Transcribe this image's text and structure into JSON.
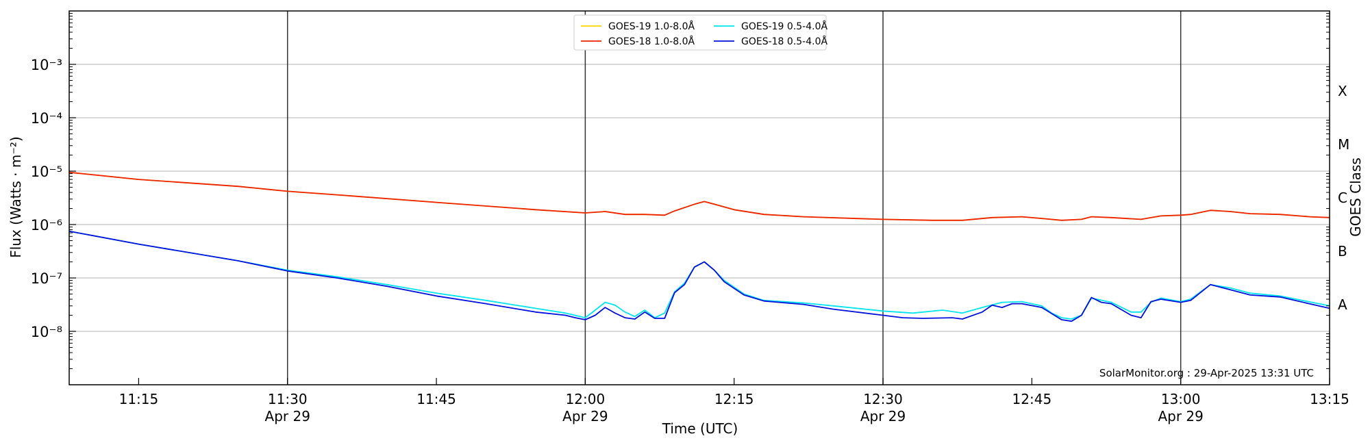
{
  "chart_data": {
    "type": "line",
    "xlabel": "Time (UTC)",
    "ylabel": "Flux (Watts · m⁻²)",
    "y2label": "GOES Class",
    "yscale": "log",
    "ylim": [
      1e-09,
      0.01
    ],
    "xlim": [
      "11:08",
      "13:15"
    ],
    "grid": "horizontal",
    "legend_position": "top-center",
    "x_ticks": [
      {
        "t": "11:15",
        "label": "11:15",
        "date": ""
      },
      {
        "t": "11:30",
        "label": "11:30",
        "date": "Apr 29"
      },
      {
        "t": "11:45",
        "label": "11:45",
        "date": ""
      },
      {
        "t": "12:00",
        "label": "12:00",
        "date": "Apr 29"
      },
      {
        "t": "12:15",
        "label": "12:15",
        "date": ""
      },
      {
        "t": "12:30",
        "label": "12:30",
        "date": "Apr 29"
      },
      {
        "t": "12:45",
        "label": "12:45",
        "date": ""
      },
      {
        "t": "13:00",
        "label": "13:00",
        "date": "Apr 29"
      },
      {
        "t": "13:15",
        "label": "13:15",
        "date": ""
      }
    ],
    "day_separators": [
      "11:30",
      "12:00",
      "12:30",
      "13:00"
    ],
    "y_ticks": [
      {
        "v": 1e-08,
        "label": "10⁻⁸"
      },
      {
        "v": 1e-07,
        "label": "10⁻⁷"
      },
      {
        "v": 1e-06,
        "label": "10⁻⁶"
      },
      {
        "v": 1e-05,
        "label": "10⁻⁵"
      },
      {
        "v": 0.0001,
        "label": "10⁻⁴"
      },
      {
        "v": 0.001,
        "label": "10⁻³"
      }
    ],
    "classes": [
      {
        "label": "A",
        "v": 1e-08
      },
      {
        "label": "B",
        "v": 1e-07
      },
      {
        "label": "C",
        "v": 1e-06
      },
      {
        "label": "M",
        "v": 1e-05
      },
      {
        "label": "X",
        "v": 0.0001
      }
    ],
    "annotation": "SolarMonitor.org : 29-Apr-2025 13:31 UTC",
    "series": [
      {
        "name": "GOES-19 1.0-8.0Å",
        "color": "#ffd700",
        "points": [
          [
            "11:08",
            9.5e-06
          ],
          [
            "11:15",
            7e-06
          ],
          [
            "11:25",
            5.2e-06
          ],
          [
            "11:30",
            4.2e-06
          ],
          [
            "11:35",
            3.6e-06
          ],
          [
            "11:45",
            2.6e-06
          ],
          [
            "11:55",
            1.9e-06
          ],
          [
            "12:00",
            1.65e-06
          ],
          [
            "12:02",
            1.75e-06
          ],
          [
            "12:04",
            1.55e-06
          ],
          [
            "12:06",
            1.55e-06
          ],
          [
            "12:08",
            1.5e-06
          ],
          [
            "12:09",
            1.8e-06
          ],
          [
            "12:11",
            2.4e-06
          ],
          [
            "12:12",
            2.7e-06
          ],
          [
            "12:13",
            2.4e-06
          ],
          [
            "12:15",
            1.9e-06
          ],
          [
            "12:18",
            1.55e-06
          ],
          [
            "12:22",
            1.4e-06
          ],
          [
            "12:30",
            1.25e-06
          ],
          [
            "12:35",
            1.2e-06
          ],
          [
            "12:38",
            1.2e-06
          ],
          [
            "12:41",
            1.35e-06
          ],
          [
            "12:44",
            1.4e-06
          ],
          [
            "12:46",
            1.3e-06
          ],
          [
            "12:48",
            1.2e-06
          ],
          [
            "12:50",
            1.25e-06
          ],
          [
            "12:51",
            1.4e-06
          ],
          [
            "12:53",
            1.35e-06
          ],
          [
            "12:56",
            1.25e-06
          ],
          [
            "12:58",
            1.45e-06
          ],
          [
            "13:00",
            1.5e-06
          ],
          [
            "13:01",
            1.55e-06
          ],
          [
            "13:03",
            1.85e-06
          ],
          [
            "13:05",
            1.75e-06
          ],
          [
            "13:07",
            1.6e-06
          ],
          [
            "13:10",
            1.55e-06
          ],
          [
            "13:13",
            1.4e-06
          ],
          [
            "13:15",
            1.35e-06
          ]
        ]
      },
      {
        "name": "GOES-18 1.0-8.0Å",
        "color": "#ee2200",
        "points": [
          [
            "11:08",
            9.5e-06
          ],
          [
            "11:15",
            7e-06
          ],
          [
            "11:25",
            5.2e-06
          ],
          [
            "11:30",
            4.2e-06
          ],
          [
            "11:35",
            3.6e-06
          ],
          [
            "11:45",
            2.6e-06
          ],
          [
            "11:55",
            1.9e-06
          ],
          [
            "12:00",
            1.65e-06
          ],
          [
            "12:02",
            1.75e-06
          ],
          [
            "12:04",
            1.55e-06
          ],
          [
            "12:06",
            1.55e-06
          ],
          [
            "12:08",
            1.5e-06
          ],
          [
            "12:09",
            1.8e-06
          ],
          [
            "12:11",
            2.4e-06
          ],
          [
            "12:12",
            2.7e-06
          ],
          [
            "12:13",
            2.4e-06
          ],
          [
            "12:15",
            1.9e-06
          ],
          [
            "12:18",
            1.55e-06
          ],
          [
            "12:22",
            1.4e-06
          ],
          [
            "12:30",
            1.25e-06
          ],
          [
            "12:35",
            1.2e-06
          ],
          [
            "12:38",
            1.2e-06
          ],
          [
            "12:41",
            1.35e-06
          ],
          [
            "12:44",
            1.4e-06
          ],
          [
            "12:46",
            1.3e-06
          ],
          [
            "12:48",
            1.2e-06
          ],
          [
            "12:50",
            1.25e-06
          ],
          [
            "12:51",
            1.4e-06
          ],
          [
            "12:53",
            1.35e-06
          ],
          [
            "12:56",
            1.25e-06
          ],
          [
            "12:58",
            1.45e-06
          ],
          [
            "13:00",
            1.5e-06
          ],
          [
            "13:01",
            1.55e-06
          ],
          [
            "13:03",
            1.85e-06
          ],
          [
            "13:05",
            1.75e-06
          ],
          [
            "13:07",
            1.6e-06
          ],
          [
            "13:10",
            1.55e-06
          ],
          [
            "13:13",
            1.4e-06
          ],
          [
            "13:15",
            1.35e-06
          ]
        ]
      },
      {
        "name": "GOES-19 0.5-4.0Å",
        "color": "#00e5ee",
        "points": [
          [
            "11:08",
            7.5e-07
          ],
          [
            "11:15",
            4.3e-07
          ],
          [
            "11:25",
            2.1e-07
          ],
          [
            "11:30",
            1.4e-07
          ],
          [
            "11:35",
            1.05e-07
          ],
          [
            "11:40",
            7.5e-08
          ],
          [
            "11:45",
            5.2e-08
          ],
          [
            "11:50",
            3.8e-08
          ],
          [
            "11:55",
            2.7e-08
          ],
          [
            "11:58",
            2.2e-08
          ],
          [
            "12:00",
            1.8e-08
          ],
          [
            "12:01",
            2.5e-08
          ],
          [
            "12:02",
            3.5e-08
          ],
          [
            "12:03",
            3.1e-08
          ],
          [
            "12:04",
            2.3e-08
          ],
          [
            "12:05",
            1.9e-08
          ],
          [
            "12:06",
            2.5e-08
          ],
          [
            "12:07",
            1.8e-08
          ],
          [
            "12:08",
            2.2e-08
          ],
          [
            "12:09",
            5.5e-08
          ],
          [
            "12:10",
            8e-08
          ],
          [
            "12:11",
            1.6e-07
          ],
          [
            "12:12",
            2e-07
          ],
          [
            "12:13",
            1.4e-07
          ],
          [
            "12:14",
            9e-08
          ],
          [
            "12:16",
            5e-08
          ],
          [
            "12:18",
            3.8e-08
          ],
          [
            "12:22",
            3.4e-08
          ],
          [
            "12:25",
            3e-08
          ],
          [
            "12:30",
            2.4e-08
          ],
          [
            "12:33",
            2.2e-08
          ],
          [
            "12:36",
            2.5e-08
          ],
          [
            "12:38",
            2.2e-08
          ],
          [
            "12:40",
            2.8e-08
          ],
          [
            "12:42",
            3.5e-08
          ],
          [
            "12:44",
            3.6e-08
          ],
          [
            "12:46",
            3e-08
          ],
          [
            "12:47",
            2.2e-08
          ],
          [
            "12:48",
            1.8e-08
          ],
          [
            "12:49",
            1.7e-08
          ],
          [
            "12:50",
            2e-08
          ],
          [
            "12:51",
            4.2e-08
          ],
          [
            "12:53",
            3.5e-08
          ],
          [
            "12:55",
            2.3e-08
          ],
          [
            "12:56",
            2.3e-08
          ],
          [
            "12:57",
            3.5e-08
          ],
          [
            "12:58",
            4.2e-08
          ],
          [
            "13:00",
            3.6e-08
          ],
          [
            "13:01",
            4e-08
          ],
          [
            "13:03",
            7.5e-08
          ],
          [
            "13:05",
            6.5e-08
          ],
          [
            "13:07",
            5.2e-08
          ],
          [
            "13:10",
            4.6e-08
          ],
          [
            "13:15",
            3e-08
          ]
        ]
      },
      {
        "name": "GOES-18 0.5-4.0Å",
        "color": "#0010dd",
        "points": [
          [
            "11:08",
            7.5e-07
          ],
          [
            "11:15",
            4.3e-07
          ],
          [
            "11:25",
            2.1e-07
          ],
          [
            "11:30",
            1.35e-07
          ],
          [
            "11:35",
            1e-07
          ],
          [
            "11:40",
            7e-08
          ],
          [
            "11:45",
            4.6e-08
          ],
          [
            "11:50",
            3.3e-08
          ],
          [
            "11:55",
            2.3e-08
          ],
          [
            "11:58",
            2e-08
          ],
          [
            "11:59",
            1.8e-08
          ],
          [
            "12:00",
            1.65e-08
          ],
          [
            "12:01",
            2e-08
          ],
          [
            "12:02",
            2.8e-08
          ],
          [
            "12:03",
            2.2e-08
          ],
          [
            "12:04",
            1.8e-08
          ],
          [
            "12:05",
            1.7e-08
          ],
          [
            "12:06",
            2.3e-08
          ],
          [
            "12:07",
            1.75e-08
          ],
          [
            "12:08",
            1.75e-08
          ],
          [
            "12:09",
            5.3e-08
          ],
          [
            "12:10",
            7.5e-08
          ],
          [
            "12:11",
            1.6e-07
          ],
          [
            "12:12",
            2e-07
          ],
          [
            "12:13",
            1.4e-07
          ],
          [
            "12:14",
            8.5e-08
          ],
          [
            "12:16",
            4.8e-08
          ],
          [
            "12:18",
            3.7e-08
          ],
          [
            "12:22",
            3.2e-08
          ],
          [
            "12:25",
            2.6e-08
          ],
          [
            "12:30",
            2e-08
          ],
          [
            "12:32",
            1.8e-08
          ],
          [
            "12:34",
            1.75e-08
          ],
          [
            "12:37",
            1.8e-08
          ],
          [
            "12:38",
            1.7e-08
          ],
          [
            "12:40",
            2.3e-08
          ],
          [
            "12:41",
            3.1e-08
          ],
          [
            "12:42",
            2.8e-08
          ],
          [
            "12:43",
            3.3e-08
          ],
          [
            "12:44",
            3.3e-08
          ],
          [
            "12:46",
            2.8e-08
          ],
          [
            "12:48",
            1.65e-08
          ],
          [
            "12:49",
            1.55e-08
          ],
          [
            "12:50",
            2e-08
          ],
          [
            "12:51",
            4.3e-08
          ],
          [
            "12:52",
            3.5e-08
          ],
          [
            "12:53",
            3.3e-08
          ],
          [
            "12:55",
            2e-08
          ],
          [
            "12:56",
            1.8e-08
          ],
          [
            "12:57",
            3.6e-08
          ],
          [
            "12:58",
            4e-08
          ],
          [
            "13:00",
            3.5e-08
          ],
          [
            "13:01",
            3.8e-08
          ],
          [
            "13:03",
            7.5e-08
          ],
          [
            "13:05",
            6e-08
          ],
          [
            "13:07",
            4.8e-08
          ],
          [
            "13:10",
            4.4e-08
          ],
          [
            "13:15",
            2.7e-08
          ]
        ]
      }
    ]
  }
}
